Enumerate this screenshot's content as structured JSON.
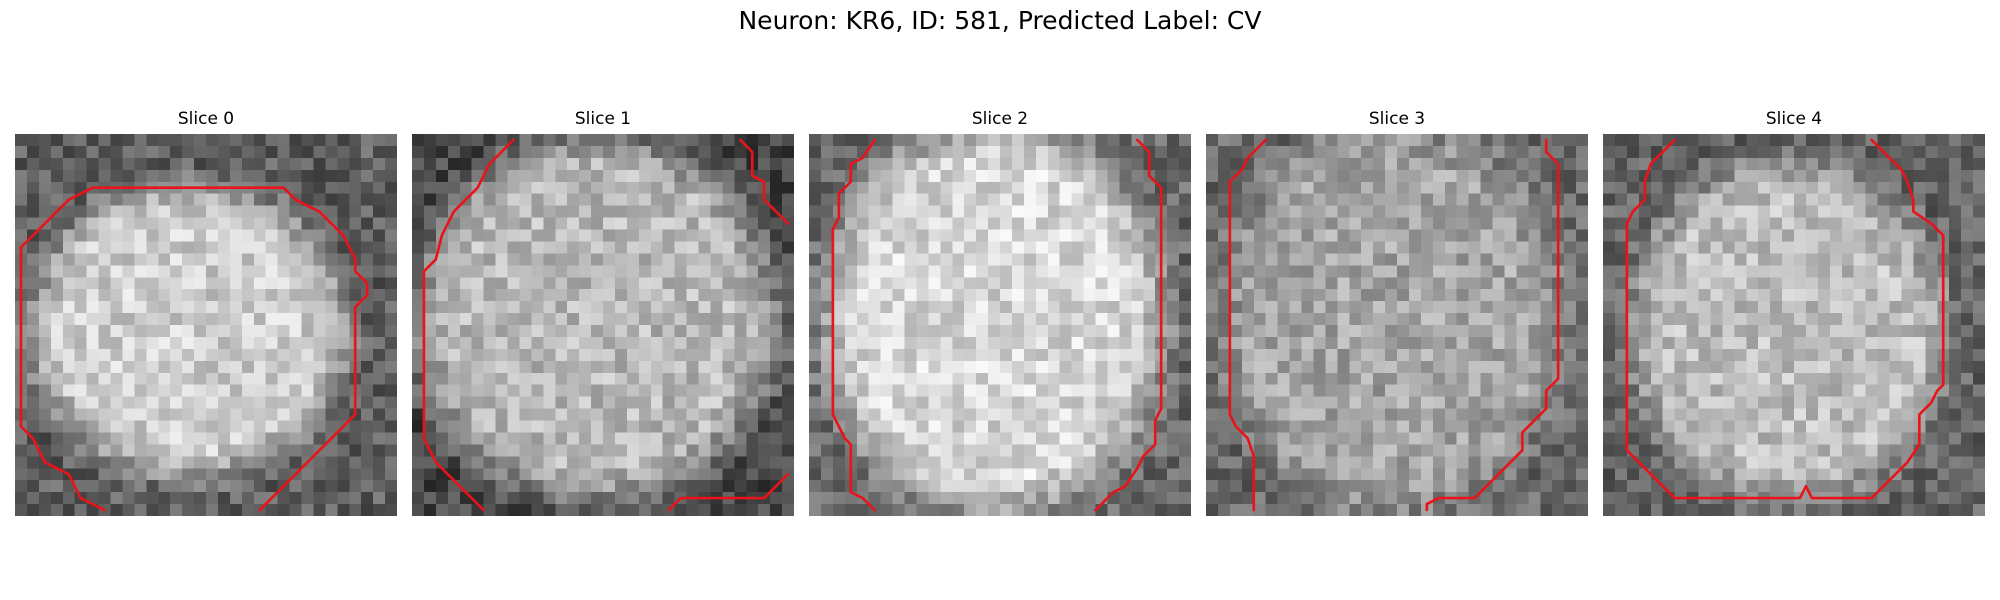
{
  "figure": {
    "title": "Neuron: KR6, ID: 581, Predicted Label: CV",
    "contour_color": "#e8141a",
    "slices": [
      {
        "title": "Slice 0"
      },
      {
        "title": "Slice 1"
      },
      {
        "title": "Slice 2"
      },
      {
        "title": "Slice 3"
      },
      {
        "title": "Slice 4"
      }
    ]
  }
}
